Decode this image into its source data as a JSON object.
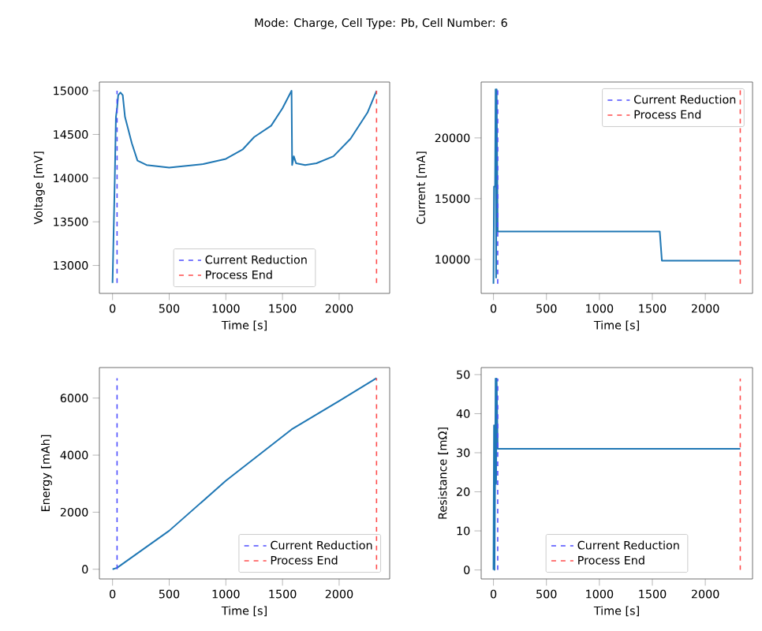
{
  "chart_data": [
    {
      "type": "line",
      "title": "Mode: Charge, Cell Type: Pb, Cell Number: 6",
      "xlabel": "Time [s]",
      "ylabel": "Voltage [mV]",
      "xlim": [
        -116,
        2446
      ],
      "ylim": [
        12680,
        15100
      ],
      "xticks": [
        0,
        500,
        1000,
        1500,
        2000
      ],
      "yticks": [
        13000,
        13500,
        14000,
        14500,
        15000
      ],
      "legend": "bottom",
      "series": [
        {
          "color": "#1f77b4",
          "x": [
            0,
            20,
            30,
            40,
            50,
            70,
            90,
            110,
            130,
            170,
            220,
            300,
            500,
            800,
            1000,
            1150,
            1250,
            1400,
            1500,
            1580,
            1585,
            1600,
            1620,
            1700,
            1800,
            1950,
            2100,
            2250,
            2330
          ],
          "values": [
            12800,
            14000,
            14700,
            14800,
            14950,
            14980,
            14950,
            14700,
            14600,
            14400,
            14200,
            14150,
            14120,
            14160,
            14220,
            14330,
            14470,
            14600,
            14800,
            15000,
            14150,
            14250,
            14170,
            14150,
            14170,
            14250,
            14450,
            14750,
            15000
          ]
        },
        {
          "name": "Current Reduction",
          "color": "#4d4dff",
          "line_style": "dashed",
          "x": [
            40,
            40
          ],
          "values": [
            12800,
            15000
          ]
        },
        {
          "name": "Process End",
          "color": "#ff4d4d",
          "line_style": "dashed",
          "x": [
            2330,
            2330
          ],
          "values": [
            12800,
            15000
          ]
        }
      ]
    },
    {
      "type": "line",
      "xlabel": "Time [s]",
      "ylabel": "Current [mA]",
      "xlim": [
        -116,
        2446
      ],
      "ylim": [
        7200,
        24600
      ],
      "xticks": [
        0,
        500,
        1000,
        1500,
        2000
      ],
      "yticks": [
        10000,
        15000,
        20000
      ],
      "legend": "top right",
      "series": [
        {
          "color": "#1f77b4",
          "x": [
            0,
            5,
            15,
            20,
            25,
            30,
            40,
            1570,
            1590,
            2330
          ],
          "values": [
            8000,
            16000,
            16000,
            24000,
            8500,
            24000,
            12300,
            12300,
            9900,
            9900
          ]
        },
        {
          "name": "Current Reduction",
          "color": "#4d4dff",
          "line_style": "dashed",
          "x": [
            40,
            40
          ],
          "values": [
            8000,
            24000
          ]
        },
        {
          "name": "Process End",
          "color": "#ff4d4d",
          "line_style": "dashed",
          "x": [
            2330,
            2330
          ],
          "values": [
            8000,
            24000
          ]
        }
      ]
    },
    {
      "type": "line",
      "xlabel": "Time [s]",
      "ylabel": "Energy [mAh]",
      "xlim": [
        -116,
        2446
      ],
      "ylim": [
        -340,
        7070
      ],
      "xticks": [
        0,
        500,
        1000,
        1500,
        2000
      ],
      "yticks": [
        0,
        2000,
        4000,
        6000
      ],
      "legend": "bottom right",
      "series": [
        {
          "color": "#1f77b4",
          "x": [
            0,
            40,
            500,
            1000,
            1580,
            2000,
            2330
          ],
          "values": [
            0,
            50,
            1350,
            3100,
            4900,
            5900,
            6700
          ]
        },
        {
          "name": "Current Reduction",
          "color": "#4d4dff",
          "line_style": "dashed",
          "x": [
            40,
            40
          ],
          "values": [
            0,
            6700
          ]
        },
        {
          "name": "Process End",
          "color": "#ff4d4d",
          "line_style": "dashed",
          "x": [
            2330,
            2330
          ],
          "values": [
            0,
            6700
          ]
        }
      ]
    },
    {
      "type": "line",
      "xlabel": "Time [s]",
      "ylabel": "Resistance [mΩ]",
      "xlim": [
        -116,
        2446
      ],
      "ylim": [
        -2.3,
        51.8
      ],
      "xticks": [
        0,
        500,
        1000,
        1500,
        2000
      ],
      "yticks": [
        0,
        10,
        20,
        30,
        40,
        50
      ],
      "legend": "bottom",
      "series": [
        {
          "color": "#1f77b4",
          "x": [
            0,
            5,
            10,
            15,
            20,
            25,
            30,
            40,
            2330
          ],
          "values": [
            0,
            37,
            0,
            22,
            49,
            22,
            49,
            31,
            31
          ]
        },
        {
          "name": "Current Reduction",
          "color": "#4d4dff",
          "line_style": "dashed",
          "x": [
            40,
            40
          ],
          "values": [
            0,
            49
          ]
        },
        {
          "name": "Process End",
          "color": "#ff4d4d",
          "line_style": "dashed",
          "x": [
            2330,
            2330
          ],
          "values": [
            0,
            49
          ]
        }
      ]
    }
  ]
}
